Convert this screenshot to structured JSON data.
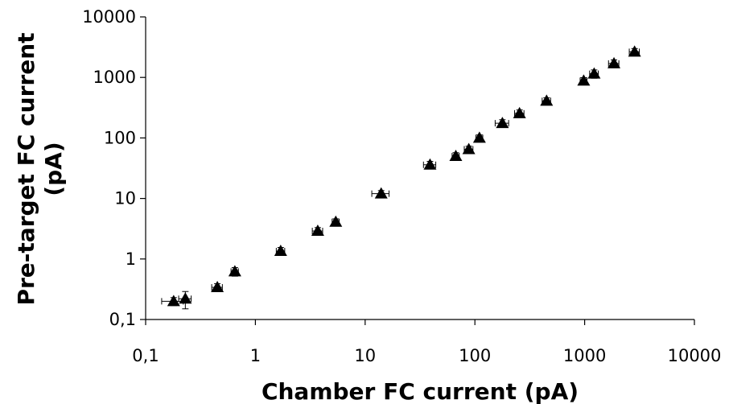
{
  "chart_data": {
    "type": "scatter",
    "title": "",
    "xlabel": "Chamber FC current (pA)",
    "ylabel_lines": [
      "Pre-target FC current",
      "(pA)"
    ],
    "x_scale": "log",
    "y_scale": "log",
    "xlim": [
      0.1,
      10000
    ],
    "ylim": [
      0.1,
      10000
    ],
    "x_tick_values": [
      0.1,
      1,
      10,
      100,
      1000,
      10000
    ],
    "x_tick_labels": [
      "0,1",
      "1",
      "10",
      "100",
      "1000",
      "10000"
    ],
    "y_tick_values": [
      0.1,
      1,
      10,
      100,
      1000,
      10000
    ],
    "y_tick_labels": [
      "0,1",
      "1",
      "10",
      "100",
      "1000",
      "10000"
    ],
    "grid": false,
    "legend": "none",
    "marker": "triangle",
    "marker_color": "#000000",
    "points": [
      {
        "x": 0.18,
        "y": 0.2,
        "x_err": 0.04,
        "y_err": 0.03
      },
      {
        "x": 0.23,
        "y": 0.22,
        "x_err": 0.03,
        "y_err": 0.07
      },
      {
        "x": 0.45,
        "y": 0.34,
        "x_err": 0.05,
        "y_err": 0.05
      },
      {
        "x": 0.65,
        "y": 0.62,
        "x_err": 0.05,
        "y_err": 0.1
      },
      {
        "x": 1.7,
        "y": 1.35,
        "x_err": 0.15,
        "y_err": 0.2
      },
      {
        "x": 3.7,
        "y": 2.9,
        "x_err": 0.4,
        "y_err": 0.4
      },
      {
        "x": 5.4,
        "y": 4.1,
        "x_err": 0.4,
        "y_err": 0.5
      },
      {
        "x": 14,
        "y": 12,
        "x_err": 2.5,
        "y_err": 1.5
      },
      {
        "x": 39,
        "y": 36,
        "x_err": 5,
        "y_err": 5
      },
      {
        "x": 67,
        "y": 50,
        "x_err": 5,
        "y_err": 7
      },
      {
        "x": 88,
        "y": 65,
        "x_err": 8,
        "y_err": 8
      },
      {
        "x": 110,
        "y": 100,
        "x_err": 8,
        "y_err": 12
      },
      {
        "x": 178,
        "y": 175,
        "x_err": 25,
        "y_err": 25
      },
      {
        "x": 255,
        "y": 255,
        "x_err": 25,
        "y_err": 35
      },
      {
        "x": 450,
        "y": 410,
        "x_err": 40,
        "y_err": 50
      },
      {
        "x": 980,
        "y": 880,
        "x_err": 70,
        "y_err": 110
      },
      {
        "x": 1220,
        "y": 1150,
        "x_err": 110,
        "y_err": 180
      },
      {
        "x": 1850,
        "y": 1700,
        "x_err": 200,
        "y_err": 250
      },
      {
        "x": 2850,
        "y": 2650,
        "x_err": 300,
        "y_err": 350
      }
    ]
  }
}
